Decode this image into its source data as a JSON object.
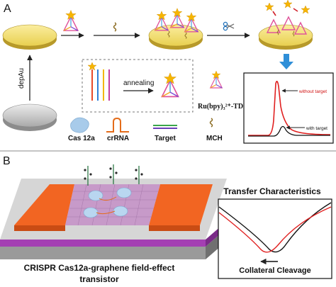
{
  "panel_a": {
    "label": "A",
    "step_label": "depAu",
    "legend": {
      "annealing": "annealing",
      "tdn": "Ru(bpy)₃²⁺-TDN",
      "cas12a": "Cas 12a",
      "crrna": "crRNA",
      "target": "Target",
      "mch": "MCH"
    },
    "signal": {
      "without_target": "without target",
      "with_target": "with target",
      "colors": {
        "without": "#e02020",
        "with": "#111111"
      }
    }
  },
  "panel_b": {
    "label": "B",
    "device_caption_line1": "CRISPR Cas12a-graphene field-effect",
    "device_caption_line2": "transistor",
    "transfer_title": "Transfer Characteristics",
    "cleavage_label": "Collateral Cleavage"
  },
  "colors": {
    "electrode_yellow": "#f7e37a",
    "substrate_gray": "#cfcfcf",
    "electrode_orange": "#f26522",
    "graphene_pink": "#c79ac9",
    "arrow_blue": "#2f8fd8"
  }
}
